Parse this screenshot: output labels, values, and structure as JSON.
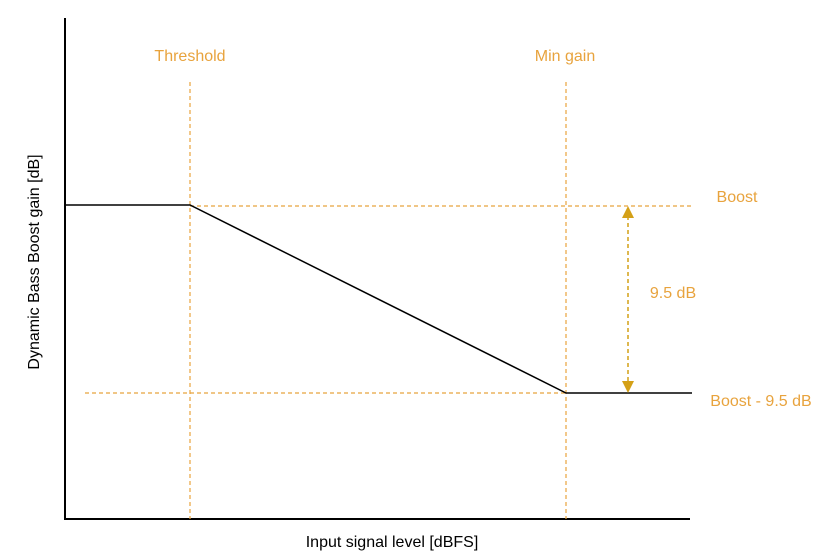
{
  "axes": {
    "x_label": "Input signal level [dBFS]",
    "y_label": "Dynamic Bass Boost gain [dB]"
  },
  "markers": {
    "threshold": "Threshold",
    "min_gain": "Min gain"
  },
  "levels": {
    "boost": "Boost",
    "boost_minus": "Boost - 9.5 dB"
  },
  "measurement": {
    "label": "9.5 dB"
  },
  "colors": {
    "guide": "#e8a33d",
    "measure": "#d4a017",
    "curve": "#000000"
  }
}
